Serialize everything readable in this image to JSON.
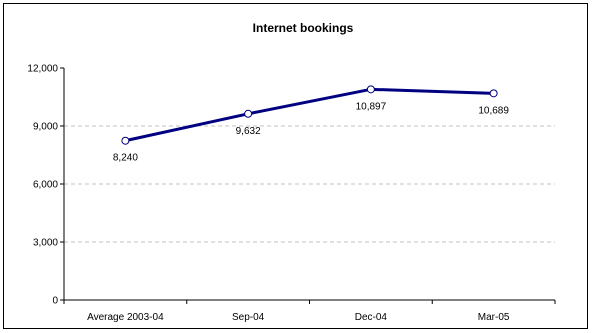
{
  "chart_data": {
    "type": "line",
    "title": "Internet bookings",
    "xlabel": "",
    "ylabel": "",
    "categories": [
      "Average 2003-04",
      "Sep-04",
      "Dec-04",
      "Mar-05"
    ],
    "series": [
      {
        "values": [
          8240,
          9632,
          10897,
          10689
        ]
      }
    ],
    "data_labels": [
      "8,240",
      "9,632",
      "10,897",
      "10,689"
    ],
    "ylim": [
      0,
      12000
    ],
    "yticks": [
      0,
      3000,
      6000,
      9000,
      12000
    ],
    "ytick_labels": [
      "0",
      "3,000",
      "6,000",
      "9,000",
      "12,000"
    ],
    "grid": "horizontal dashed",
    "legend": "none",
    "colors": {
      "line": "#000080",
      "marker_fill": "#ffffff",
      "grid": "#c0c0c0",
      "axis": "#000000"
    }
  }
}
